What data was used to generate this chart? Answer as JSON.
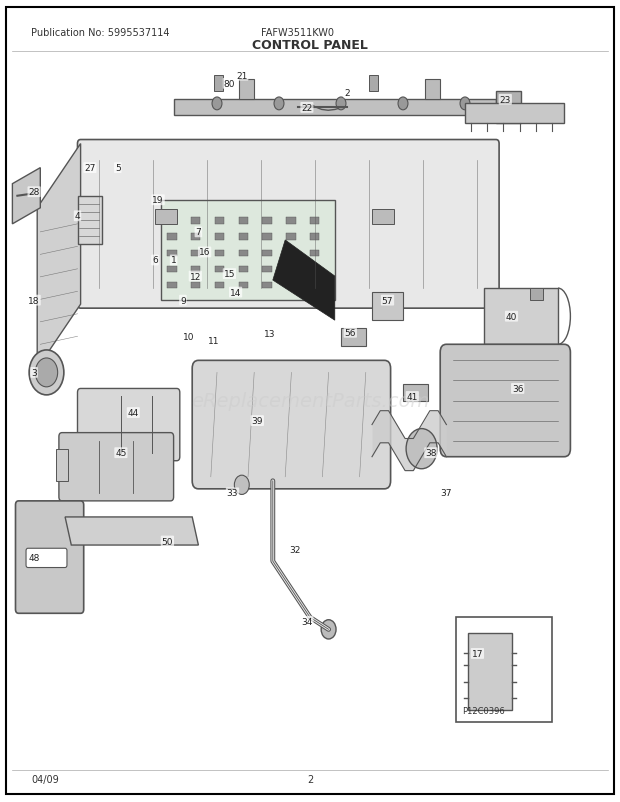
{
  "title": "CONTROL PANEL",
  "pub_no": "Publication No: 5995537114",
  "model": "FAFW3511KW0",
  "date": "04/09",
  "page": "2",
  "ref_no": "P12C0396",
  "bg_color": "#ffffff",
  "border_color": "#000000",
  "watermark": "eReplacementParts.com",
  "watermark_color": "#cccccc",
  "line_color": "#333333",
  "text_color": "#333333",
  "diagram_color": "#555555"
}
